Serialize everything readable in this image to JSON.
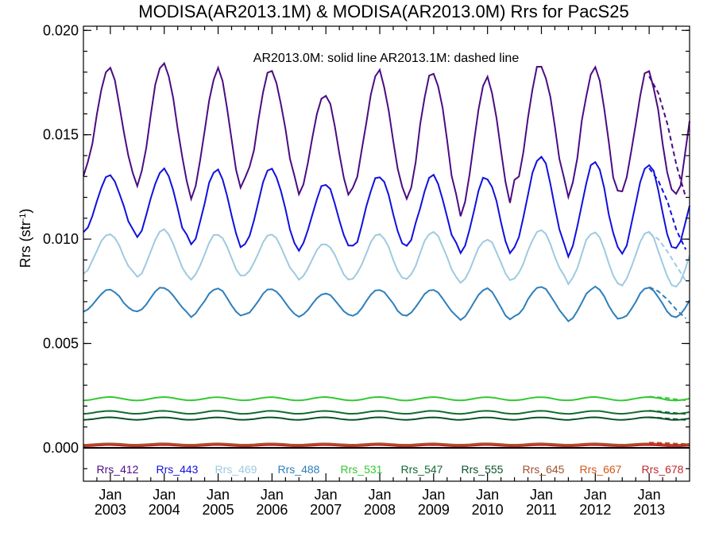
{
  "chart_data": {
    "type": "line",
    "title": "MODISA(AR2013.1M) & MODISA(AR2013.0M)  Rrs for PacS25",
    "ylabel": "Rrs (str",
    "ylabel_sup": "-1",
    "ylabel_close": ")",
    "annotation": "AR2013.0M: solid line   AR2013.1M: dashed line",
    "ylim": [
      -0.0016,
      0.0202
    ],
    "xlim": [
      2002.5,
      2013.75
    ],
    "yticks": [
      0.0,
      0.005,
      0.01,
      0.015,
      0.02
    ],
    "ytick_labels": [
      "0.000",
      "0.005",
      "0.010",
      "0.015",
      "0.020"
    ],
    "xticks": [
      {
        "year": 2003,
        "month": "Jan",
        "label": "2003"
      },
      {
        "year": 2004,
        "month": "Jan",
        "label": "2004"
      },
      {
        "year": 2005,
        "month": "Jan",
        "label": "2005"
      },
      {
        "year": 2006,
        "month": "Jan",
        "label": "2006"
      },
      {
        "year": 2007,
        "month": "Jan",
        "label": "2007"
      },
      {
        "year": 2008,
        "month": "Jan",
        "label": "2008"
      },
      {
        "year": 2009,
        "month": "Jan",
        "label": "2009"
      },
      {
        "year": 2010,
        "month": "Jan",
        "label": "2010"
      },
      {
        "year": 2011,
        "month": "Jan",
        "label": "2011"
      },
      {
        "year": 2012,
        "month": "Jan",
        "label": "2012"
      },
      {
        "year": 2013,
        "month": "Jan",
        "label": "2013"
      }
    ],
    "zero_line": true,
    "series": [
      {
        "name": "Rrs_412",
        "color": "#4b0c82",
        "mean": 0.0156,
        "amp": 0.0028,
        "peaks": [
          0.0181,
          0.0183,
          0.018,
          0.0182,
          0.017,
          0.018,
          0.0179,
          0.0176,
          0.0185,
          0.0184,
          0.018
        ],
        "troughs": [
          0.013,
          0.0127,
          0.0121,
          0.0127,
          0.0121,
          0.0124,
          0.0121,
          0.0113,
          0.0126,
          0.0118,
          0.0122
        ],
        "dashed_end": [
          0.0178,
          0.017,
          0.0155,
          0.0135,
          0.012
        ]
      },
      {
        "name": "Rrs_443",
        "color": "#1010e0",
        "mean": 0.0116,
        "amp": 0.0018,
        "peaks": [
          0.0131,
          0.0134,
          0.0133,
          0.0133,
          0.0126,
          0.0131,
          0.0131,
          0.013,
          0.0139,
          0.0136,
          0.0136
        ],
        "troughs": [
          0.0103,
          0.01,
          0.0096,
          0.0098,
          0.0095,
          0.0096,
          0.0096,
          0.0092,
          0.0097,
          0.0093,
          0.0094
        ],
        "dashed_end": [
          0.0134,
          0.0128,
          0.0118,
          0.0104,
          0.0095
        ]
      },
      {
        "name": "Rrs_469",
        "color": "#9ecae1",
        "mean": 0.0093,
        "amp": 0.0011,
        "peaks": [
          0.0102,
          0.0104,
          0.0103,
          0.0103,
          0.0098,
          0.0102,
          0.0103,
          0.01,
          0.0105,
          0.0104,
          0.0103
        ],
        "troughs": [
          0.0084,
          0.0082,
          0.0081,
          0.0082,
          0.008,
          0.0081,
          0.0081,
          0.0079,
          0.0081,
          0.0078,
          0.0078
        ],
        "dashed_end": [
          0.0103,
          0.01,
          0.0094,
          0.0087,
          0.008
        ]
      },
      {
        "name": "Rrs_488",
        "color": "#2e7fba",
        "mean": 0.007,
        "amp": 0.0007,
        "peaks": [
          0.0076,
          0.0077,
          0.0076,
          0.0076,
          0.0074,
          0.0076,
          0.0076,
          0.0076,
          0.0077,
          0.0077,
          0.0077
        ],
        "troughs": [
          0.0065,
          0.0065,
          0.0063,
          0.0064,
          0.0063,
          0.0063,
          0.0063,
          0.0061,
          0.0063,
          0.0061,
          0.0062
        ],
        "dashed_end": [
          0.0077,
          0.0075,
          0.0071,
          0.0066,
          0.0062
        ]
      },
      {
        "name": "Rrs_531",
        "color": "#32c832",
        "mean": 0.00235,
        "amp": 8e-05,
        "peaks": [],
        "troughs": [],
        "dashed_end": [
          0.00245,
          0.00242,
          0.00238,
          0.00232,
          0.00228
        ]
      },
      {
        "name": "Rrs_547",
        "color": "#116b32",
        "mean": 0.0017,
        "amp": 7e-05,
        "peaks": [],
        "troughs": [],
        "dashed_end": [
          0.00178,
          0.00175,
          0.0017,
          0.00166,
          0.00162
        ]
      },
      {
        "name": "Rrs_555",
        "color": "#0b5128",
        "mean": 0.0014,
        "amp": 6e-05,
        "peaks": [],
        "troughs": [],
        "dashed_end": [
          0.00146,
          0.00144,
          0.0014,
          0.00137,
          0.00134
        ]
      },
      {
        "name": "Rrs_645",
        "color": "#a0522d",
        "mean": 0.00018,
        "amp": 3e-05,
        "peaks": [],
        "troughs": [],
        "dashed_end": [
          0.00025,
          0.00024,
          0.00022,
          0.0002,
          0.00018
        ]
      },
      {
        "name": "Rrs_667",
        "color": "#d2581a",
        "mean": 0.00012,
        "amp": 3e-05,
        "peaks": [],
        "troughs": [],
        "dashed_end": [
          0.00022,
          0.00021,
          0.00019,
          0.00017,
          0.00015
        ]
      },
      {
        "name": "Rrs_678",
        "color": "#c0282d",
        "mean": 0.0001,
        "amp": 3e-05,
        "peaks": [],
        "troughs": [],
        "dashed_end": [
          0.0002,
          0.00019,
          0.00017,
          0.00015,
          0.00013
        ]
      }
    ]
  }
}
